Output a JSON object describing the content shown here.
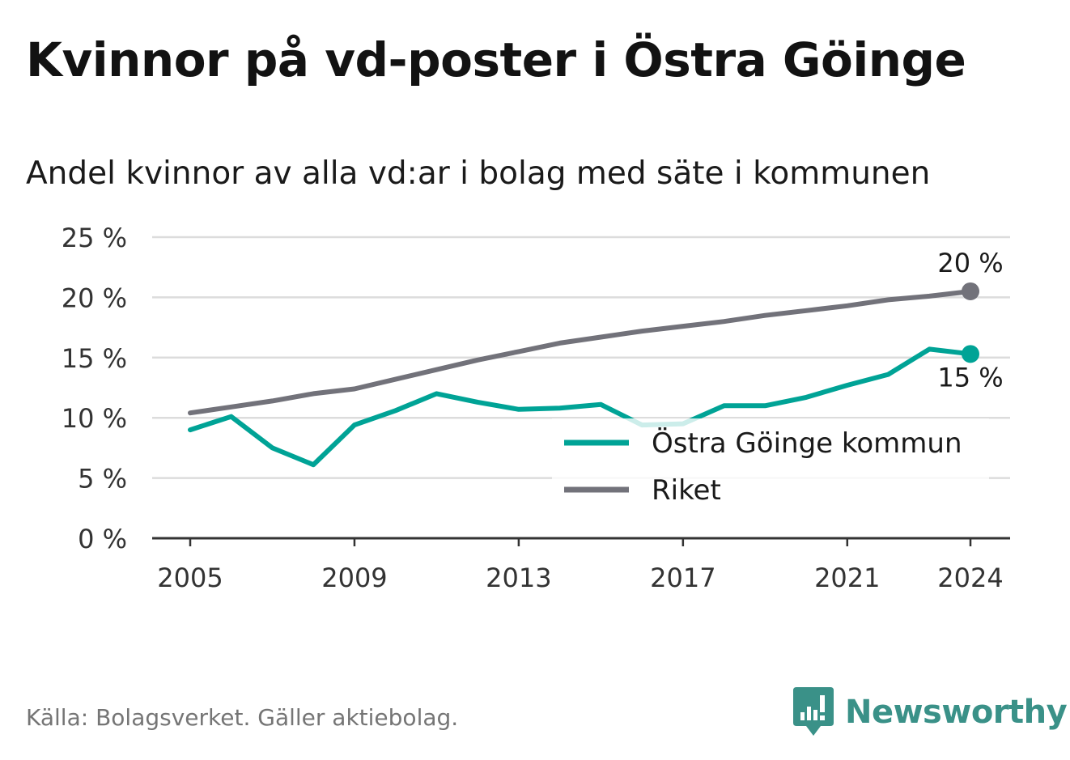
{
  "chart_data": {
    "type": "line",
    "title": "Kvinnor på vd-poster i Östra Göinge",
    "subtitle": "Andel kvinnor av alla vd:ar i bolag med säte i kommunen",
    "xlabel": "",
    "ylabel": "",
    "x": [
      2005,
      2006,
      2007,
      2008,
      2009,
      2010,
      2011,
      2012,
      2013,
      2014,
      2015,
      2016,
      2017,
      2018,
      2019,
      2020,
      2021,
      2022,
      2023,
      2024
    ],
    "x_ticks": [
      "2005",
      "2009",
      "2013",
      "2017",
      "2021",
      "2024"
    ],
    "ylim": [
      0,
      25
    ],
    "y_ticks": [
      "0 %",
      "5 %",
      "10 %",
      "15 %",
      "20 %",
      "25 %"
    ],
    "grid": true,
    "legend_position": "bottom-right",
    "series": [
      {
        "name": "Östra Göinge kommun",
        "color": "#00a396",
        "values": [
          9.0,
          10.1,
          7.5,
          6.1,
          9.4,
          10.6,
          12.0,
          11.3,
          10.7,
          10.8,
          11.1,
          9.4,
          9.5,
          11.0,
          11.0,
          11.7,
          12.7,
          13.6,
          15.7,
          15.3
        ],
        "end_label": "15 %"
      },
      {
        "name": "Riket",
        "color": "#72727a",
        "values": [
          10.4,
          10.9,
          11.4,
          12.0,
          12.4,
          13.2,
          14.0,
          14.8,
          15.5,
          16.2,
          16.7,
          17.2,
          17.6,
          18.0,
          18.5,
          18.9,
          19.3,
          19.8,
          20.1,
          20.5
        ],
        "end_label": "20 %"
      }
    ]
  },
  "footer": {
    "source": "Källa: Bolagsverket. Gäller aktiebolag.",
    "brand": "Newsworthy"
  }
}
